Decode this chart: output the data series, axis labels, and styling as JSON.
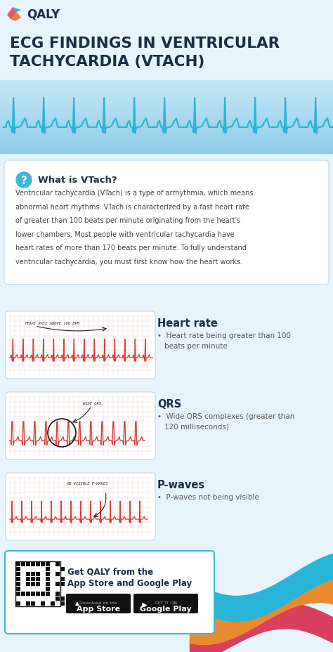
{
  "bg_color": "#e8f4fb",
  "white": "#ffffff",
  "dark_navy": "#1a2e44",
  "blue_ecg": "#29b5d8",
  "red_ecg": "#d94040",
  "grid_color": "#f5cccc",
  "title_line1": "ECG FINDINGS IN VENTRICULAR",
  "title_line2": "TACHYCARDIA (VTACH)",
  "logo_text": "QALY",
  "what_title": "What is VTach?",
  "what_body": "Ventricular tachycardia (VTach) is a type of arrhythmia, which means\nabnormal heart rhythms. VTach is characterized by a fast heart rate\nof greater than 100 beats per minute originating from the heart's\nlower chambers. Most people with ventricular tachycardia have\nheart rates of more than 170 beats per minute. To fully understand\nventricular tachycardia, you must first know how the heart works.",
  "section1_title": "Heart rate",
  "section1_bullet": "Heart rate being greater than 100\nbeats per minute",
  "section1_annot": "HEART RATE ABOVE 100 BPM",
  "section2_title": "QRS",
  "section2_bullet": "Wide QRS complexes (greater than\n120 milliseconds)",
  "section2_annot": "WIDE QRS",
  "section3_title": "P-waves",
  "section3_bullet": "P-waves not being visible",
  "section3_annot": "NO VISIBLE P-WAVES",
  "footer_text1": "Get QALY from the",
  "footer_text2": "App Store and Google Play",
  "app_store": "App Store",
  "google_play": "Google Play",
  "ecg_banner_color": "#aad8ef",
  "ecg_banner_color2": "#c5e8f5",
  "box_border": "#cce4f5",
  "teal_wave": "#29b5d8",
  "orange_wave": "#e88b2e",
  "red_wave": "#d94060"
}
